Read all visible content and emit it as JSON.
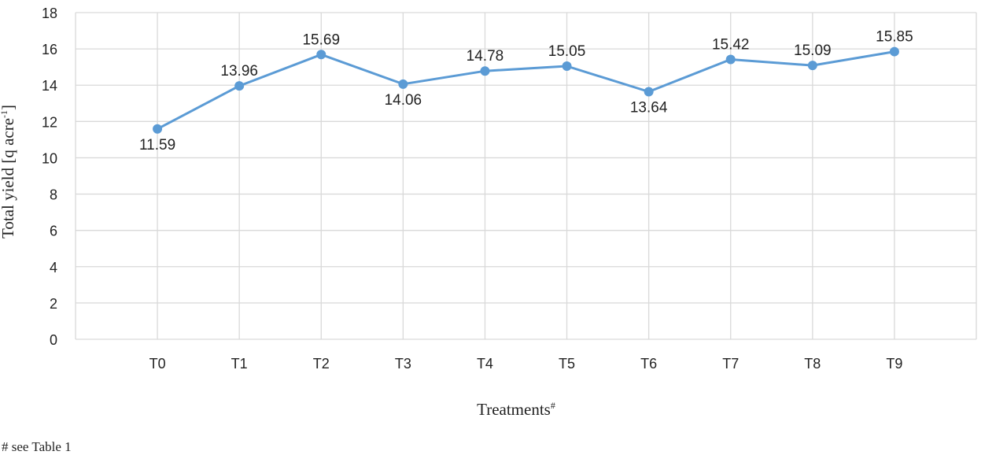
{
  "chart_data": {
    "type": "line",
    "categories": [
      "T0",
      "T1",
      "T2",
      "T3",
      "T4",
      "T5",
      "T6",
      "T7",
      "T8",
      "T9"
    ],
    "series": [
      {
        "values": [
          11.59,
          13.96,
          15.69,
          14.06,
          14.78,
          15.05,
          13.64,
          15.42,
          15.09,
          15.85
        ]
      }
    ],
    "data_labels": [
      "11.59",
      "13.96",
      "15.69",
      "14.06",
      "14.78",
      "15.05",
      "13.64",
      "15.42",
      "15.09",
      "15.85"
    ],
    "data_label_positions": [
      "below",
      "above",
      "above",
      "below",
      "above",
      "above",
      "below",
      "above",
      "above",
      "above"
    ],
    "ylabel": "Total yield [q acre",
    "ylabel_superscript": "-1",
    "ylabel_suffix": "]",
    "xlabel": "Treatments",
    "xlabel_superscript": "#",
    "ylim": [
      0,
      18
    ],
    "yticks": [
      0,
      2,
      4,
      6,
      8,
      10,
      12,
      14,
      16,
      18
    ],
    "grid": true,
    "line_color": "#5b9bd5",
    "grid_color": "#d9d9d9"
  },
  "footnote": "# see Table 1"
}
